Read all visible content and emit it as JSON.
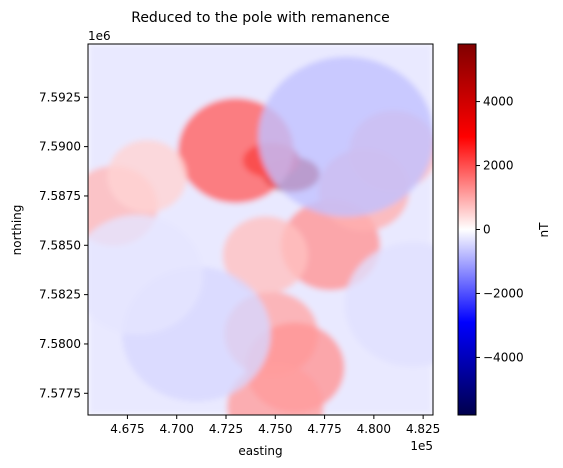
{
  "chart_data": {
    "type": "heatmap",
    "title": "Reduced to the pole with remanence",
    "xlabel": "easting",
    "ylabel": "northing",
    "x_offset_label": "1e5",
    "y_offset_label": "1e6",
    "xlim": [
      465500,
      483000
    ],
    "ylim": [
      7576400,
      7595200
    ],
    "x_ticks": [
      467500,
      470000,
      472500,
      475000,
      477500,
      480000,
      482500
    ],
    "x_tick_labels": [
      "4.675",
      "4.700",
      "4.725",
      "4.750",
      "4.775",
      "4.800",
      "4.825"
    ],
    "y_ticks": [
      7577500,
      7580000,
      7582500,
      7585000,
      7587500,
      7590000,
      7592500
    ],
    "y_tick_labels": [
      "7.5775",
      "7.5800",
      "7.5825",
      "7.5850",
      "7.5875",
      "7.5900",
      "7.5925"
    ],
    "colormap": "seismic",
    "colorbar": {
      "label": "nT",
      "vmin": -5800,
      "vmax": 5800,
      "ticks": [
        -4000,
        -2000,
        0,
        2000,
        4000
      ],
      "tick_labels": [
        "−4000",
        "−2000",
        "0",
        "2000",
        "4000"
      ]
    },
    "anomalies": [
      {
        "x": 475800,
        "y": 7588600,
        "value": 5200
      },
      {
        "x": 474800,
        "y": 7589300,
        "value": 3500
      },
      {
        "x": 473000,
        "y": 7589800,
        "value": 1800
      },
      {
        "x": 466800,
        "y": 7587000,
        "value": 800
      },
      {
        "x": 468500,
        "y": 7588500,
        "value": 500
      },
      {
        "x": 477800,
        "y": 7585000,
        "value": 1200
      },
      {
        "x": 479500,
        "y": 7587800,
        "value": 900
      },
      {
        "x": 481000,
        "y": 7589800,
        "value": 800
      },
      {
        "x": 474800,
        "y": 7580500,
        "value": 1000
      },
      {
        "x": 476000,
        "y": 7578800,
        "value": 1200
      },
      {
        "x": 475000,
        "y": 7576800,
        "value": 1100
      },
      {
        "x": 474500,
        "y": 7584500,
        "value": 700
      },
      {
        "x": 471000,
        "y": 7580500,
        "value": -450
      },
      {
        "x": 478600,
        "y": 7590500,
        "value": -700
      },
      {
        "x": 482000,
        "y": 7582000,
        "value": -350
      },
      {
        "x": 468000,
        "y": 7583500,
        "value": -300
      }
    ]
  }
}
